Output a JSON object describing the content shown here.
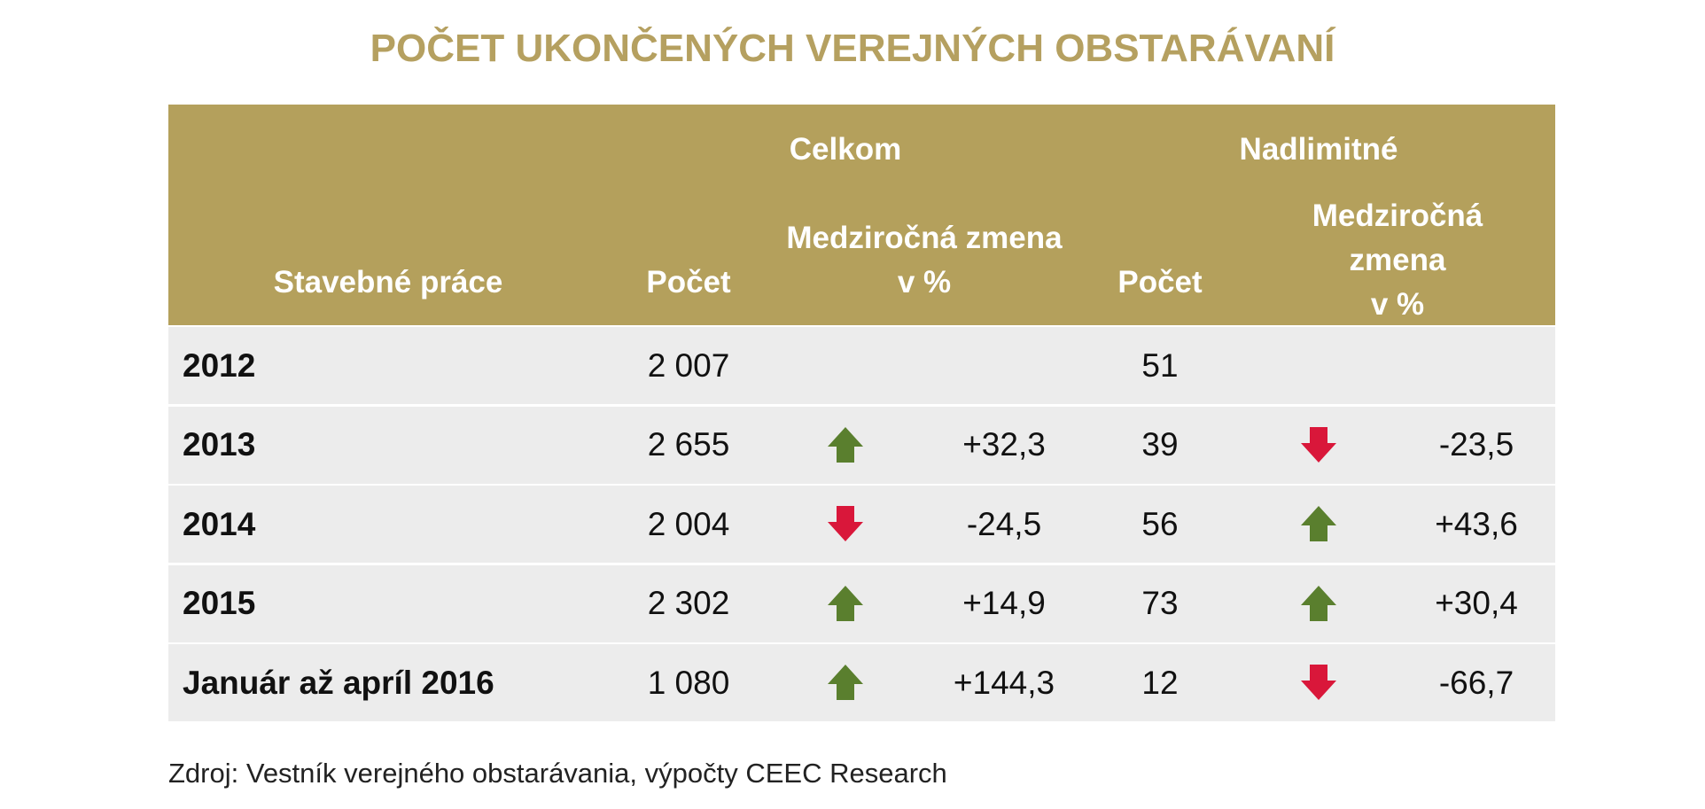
{
  "title": "POČET UKONČENÝCH VEREJNÝCH OBSTARÁVANÍ",
  "table": {
    "header": {
      "groups": [
        "Celkom",
        "Nadlimitné"
      ],
      "columns": [
        "Stavebné práce",
        "Počet",
        "Medziročná zmena\nv %",
        "Počet",
        "Medziročná zmena\nv %"
      ]
    },
    "rows": [
      [
        "2012",
        "2 007",
        null,
        "51",
        null
      ],
      [
        "2013",
        "2 655",
        "+32,3",
        "39",
        "-23,5"
      ],
      [
        "2014",
        "2 004",
        "-24,5",
        "56",
        "+43,6"
      ],
      [
        "2015",
        "2 302",
        "+14,9",
        "73",
        "+30,4"
      ],
      [
        "Január až apríl 2016",
        "1 080",
        "+144,3",
        "12",
        "-66,7"
      ]
    ]
  },
  "source": "Zdroj: Vestník verejného obstarávania, výpočty CEEC Research"
}
